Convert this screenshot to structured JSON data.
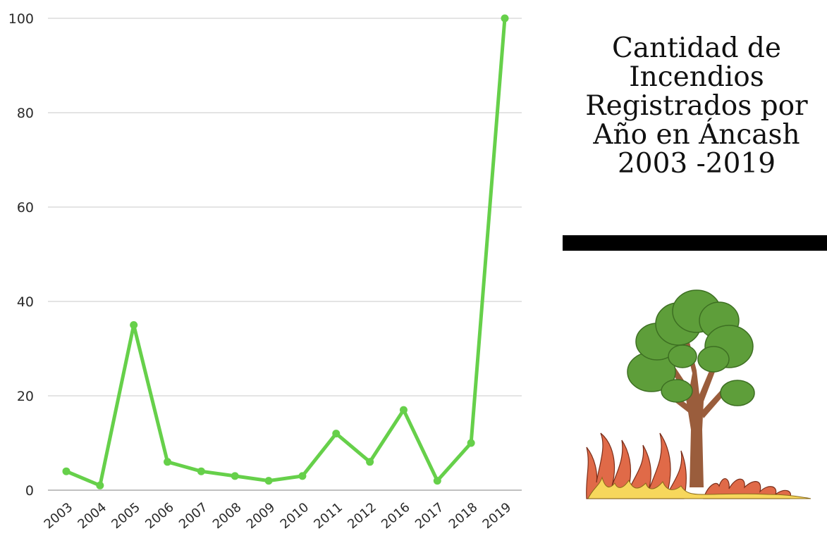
{
  "chart_data": {
    "type": "line",
    "title_lines": [
      "Cantidad de",
      "Incendios",
      "Registrados por",
      "Año en Áncash",
      "2003 -2019"
    ],
    "categories": [
      "2003",
      "2004",
      "2005",
      "2006",
      "2007",
      "2008",
      "2009",
      "2010",
      "2011",
      "2012",
      "2016",
      "2017",
      "2018",
      "2019"
    ],
    "values": [
      4,
      1,
      35,
      6,
      4,
      3,
      2,
      3,
      12,
      6,
      17,
      2,
      10,
      100
    ],
    "ylim": [
      0,
      100
    ],
    "yticks": [
      0,
      20,
      40,
      60,
      80,
      100
    ],
    "grid": true,
    "legend": "none",
    "line_color": "#66d04a"
  },
  "illustration": {
    "icon": "burning-tree-icon",
    "colors": {
      "foliage": "#5e9e3a",
      "trunk": "#9a5d3c",
      "flame_outer": "#e06a48",
      "flame_inner": "#f7d75c"
    }
  }
}
